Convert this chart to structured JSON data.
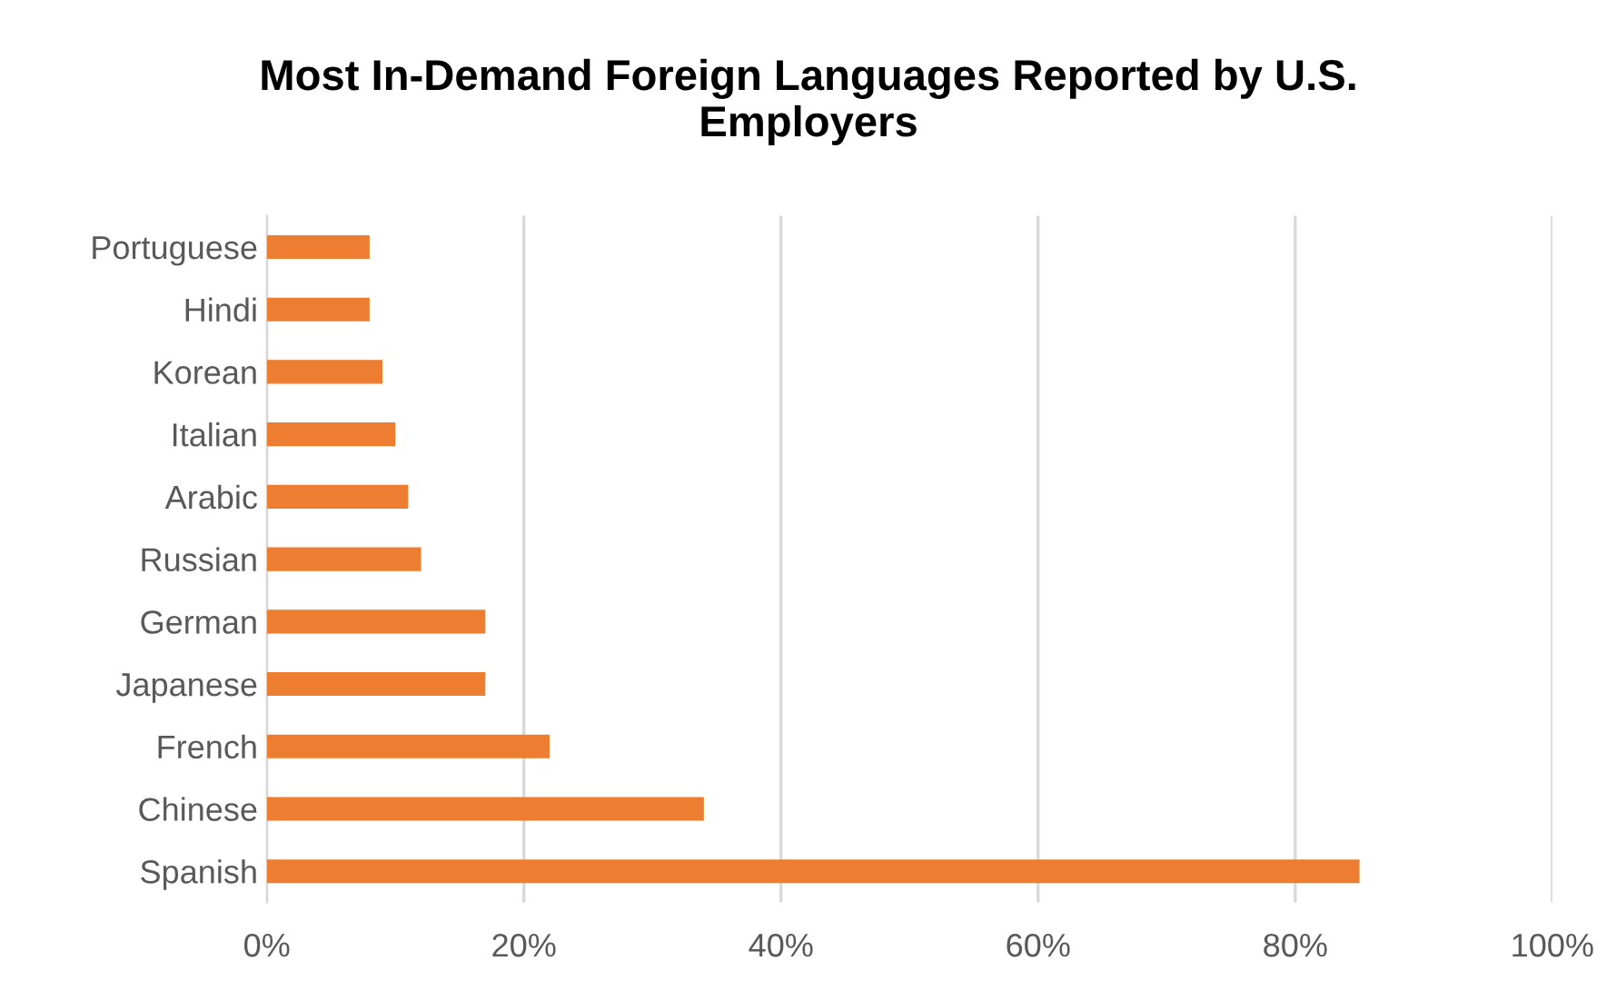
{
  "chart_data": {
    "type": "bar",
    "orientation": "horizontal",
    "title": "Most In-Demand Foreign Languages Reported by U.S.\nEmployers",
    "categories": [
      "Portuguese",
      "Hindi",
      "Korean",
      "Italian",
      "Arabic",
      "Russian",
      "German",
      "Japanese",
      "French",
      "Chinese",
      "Spanish"
    ],
    "values": [
      8,
      8,
      9,
      10,
      11,
      12,
      17,
      17,
      22,
      34,
      85
    ],
    "color": "#ed7d31",
    "xlim": [
      0,
      100
    ],
    "xticks": [
      {
        "value": 0,
        "label": "0%"
      },
      {
        "value": 20,
        "label": "20%"
      },
      {
        "value": 40,
        "label": "40%"
      },
      {
        "value": 60,
        "label": "60%"
      },
      {
        "value": 80,
        "label": "80%"
      },
      {
        "value": 100,
        "label": "100%"
      }
    ],
    "grid": "x",
    "legend": false
  }
}
